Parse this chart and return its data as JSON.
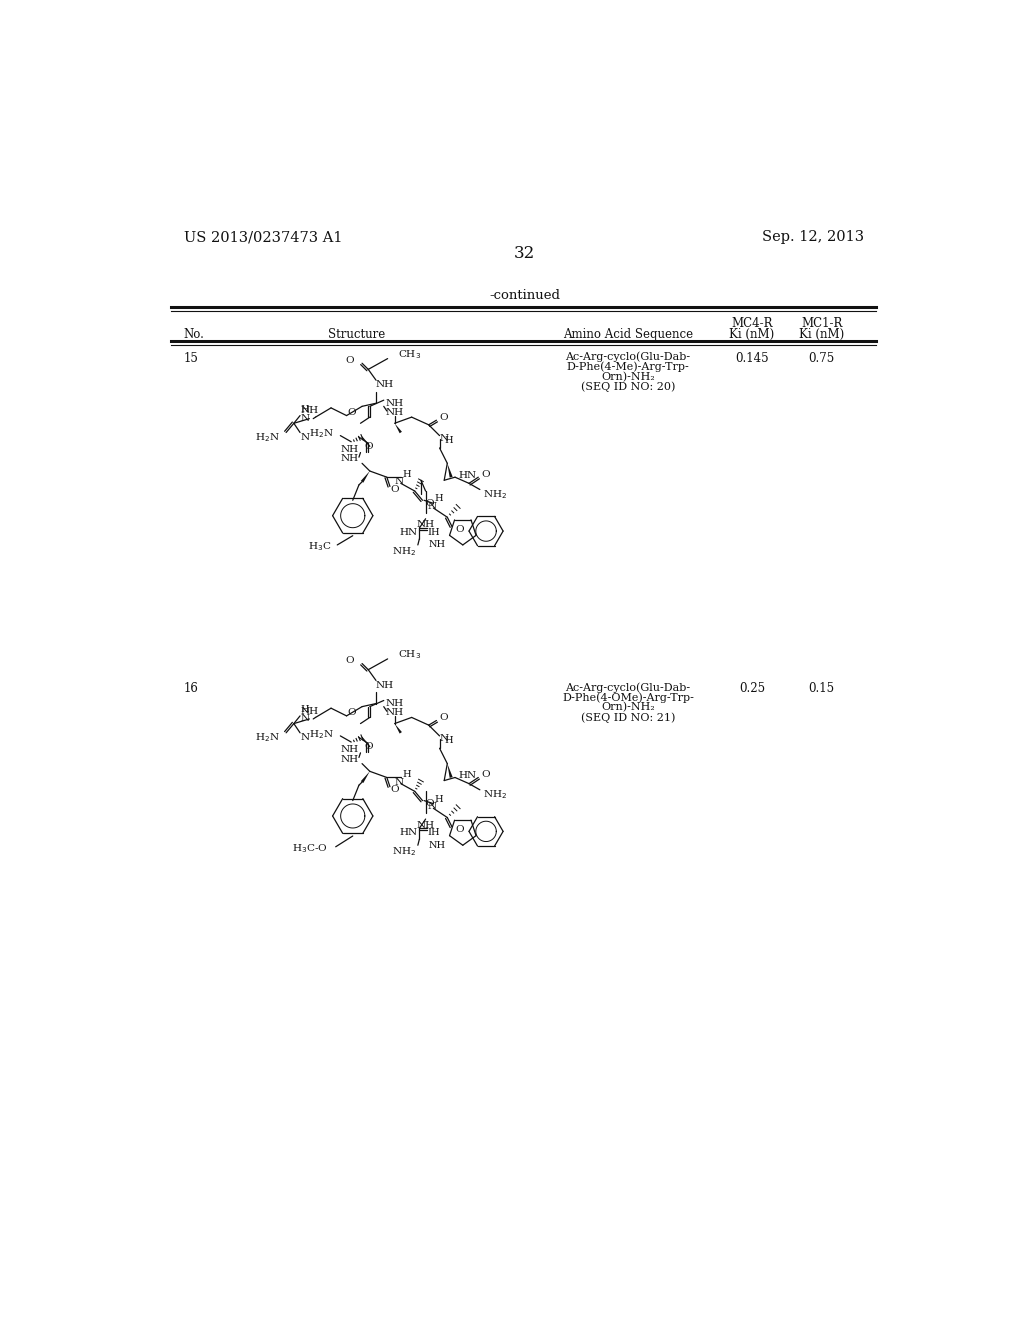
{
  "bg_color": "#ffffff",
  "header_left": "US 2013/0237473 A1",
  "header_right": "Sep. 12, 2013",
  "page_number": "32",
  "continued_text": "-continued",
  "no_header": "No.",
  "struct_header": "Structure",
  "seq_header": "Amino Acid Sequence",
  "mc4r_h1": "MC4-R",
  "mc1r_h1": "MC1-R",
  "mc4r_h2": "Ki (nM)",
  "mc1r_h2": "Ki (nM)",
  "row15_no": "15",
  "row15_seq": [
    "Ac-Arg-cyclo(Glu-Dab-",
    "D-Phe(4-Me)-Arg-Trp-",
    "Orn)-NH₂",
    "(SEQ ID NO: 20)"
  ],
  "row15_mc4r": "0.145",
  "row15_mc1r": "0.75",
  "row16_no": "16",
  "row16_seq": [
    "Ac-Arg-cyclo(Glu-Dab-",
    "D-Phe(4-OMe)-Arg-Trp-",
    "Orn)-NH₂",
    "(SEQ ID NO: 21)"
  ],
  "row16_mc4r": "0.25",
  "row16_mc1r": "0.15"
}
